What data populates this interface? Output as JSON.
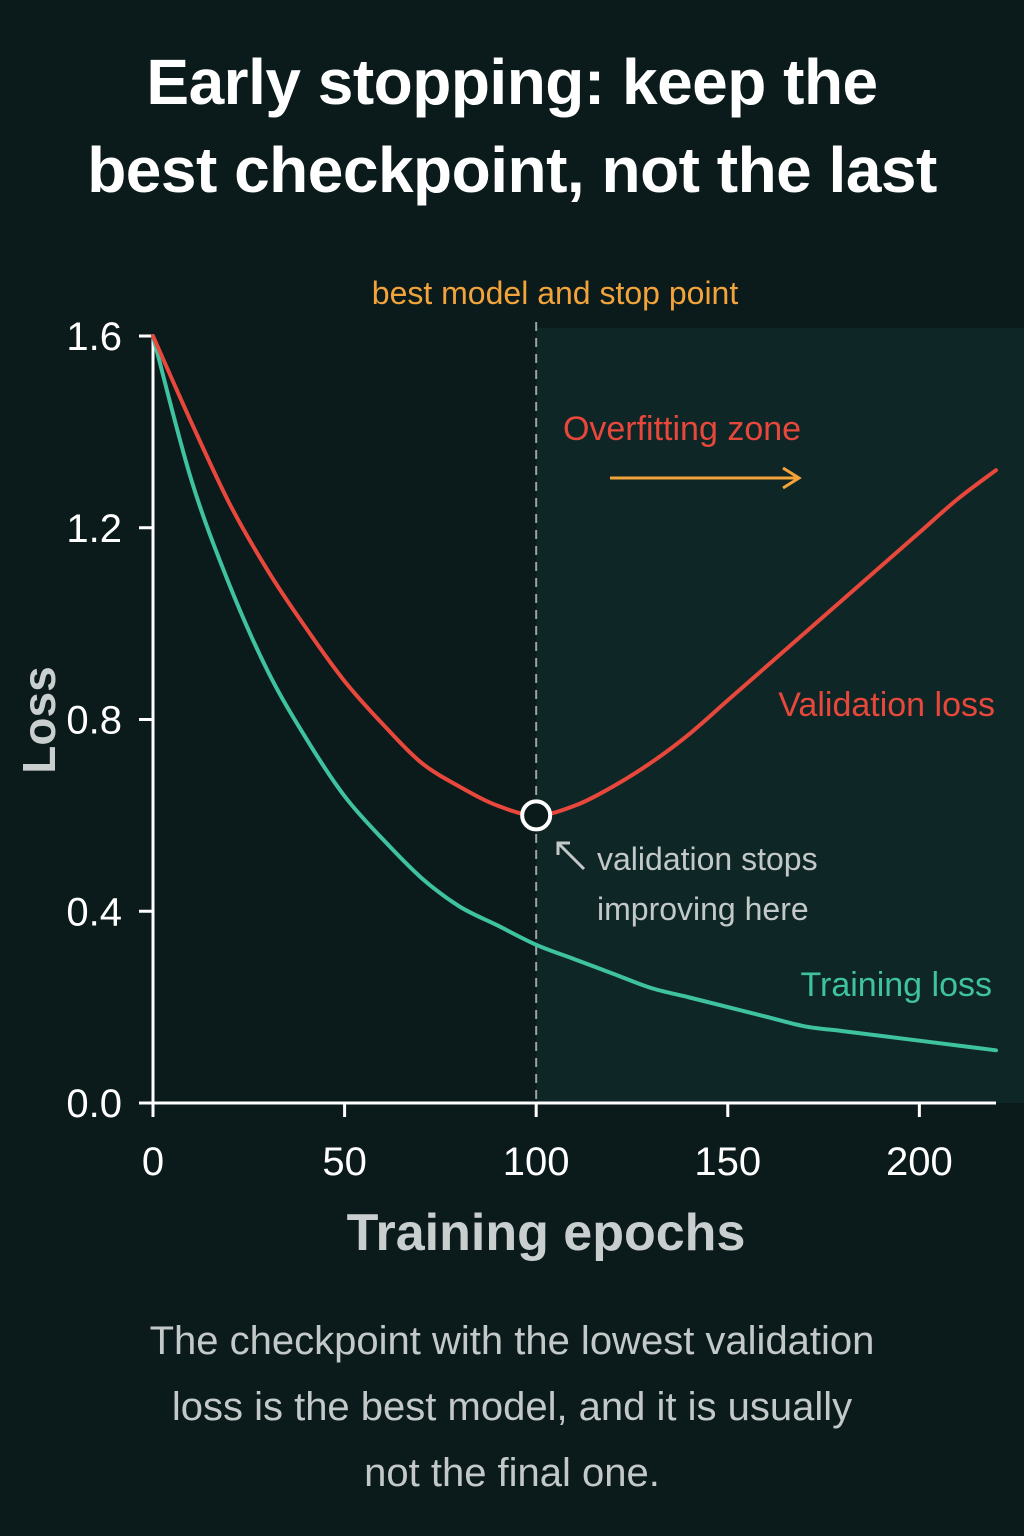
{
  "header": {
    "title_line1": "Early stopping: keep the",
    "title_line2": "best checkpoint, not the last"
  },
  "footer": {
    "caption_line1": "The checkpoint with the lowest validation",
    "caption_line2": "loss is the best model, and it is usually",
    "caption_line3": "not the final one."
  },
  "colors": {
    "background": "#0b1a1b",
    "overfit_zone": "#0f2626",
    "validation": "#e8473b",
    "training": "#3fc2a0",
    "accent": "#f2a33a",
    "axis": "#ffffff"
  },
  "chart_data": {
    "type": "line",
    "xlabel": "Training epochs",
    "ylabel": "Loss",
    "xlim": [
      0,
      220
    ],
    "ylim": [
      0,
      1.6
    ],
    "x_ticks": [
      0,
      50,
      100,
      150,
      200
    ],
    "y_ticks": [
      0.0,
      0.4,
      0.8,
      1.2,
      1.6
    ],
    "y_tick_labels": [
      "0.0",
      "0.4",
      "0.8",
      "1.2",
      "1.6"
    ],
    "grid": false,
    "series": [
      {
        "name": "Validation loss",
        "color": "#e8473b",
        "x": [
          0,
          10,
          20,
          30,
          40,
          50,
          60,
          70,
          80,
          90,
          100,
          110,
          120,
          130,
          140,
          150,
          160,
          170,
          180,
          190,
          200,
          210,
          220
        ],
        "y": [
          1.6,
          1.42,
          1.25,
          1.11,
          0.99,
          0.88,
          0.79,
          0.71,
          0.66,
          0.62,
          0.6,
          0.62,
          0.66,
          0.71,
          0.77,
          0.84,
          0.91,
          0.98,
          1.05,
          1.12,
          1.19,
          1.26,
          1.32
        ]
      },
      {
        "name": "Training loss",
        "color": "#3fc2a0",
        "x": [
          0,
          10,
          20,
          30,
          40,
          50,
          60,
          70,
          80,
          90,
          100,
          110,
          120,
          130,
          140,
          150,
          160,
          170,
          180,
          190,
          200,
          210,
          220
        ],
        "y": [
          1.6,
          1.3,
          1.08,
          0.9,
          0.76,
          0.64,
          0.55,
          0.47,
          0.41,
          0.37,
          0.33,
          0.3,
          0.27,
          0.24,
          0.22,
          0.2,
          0.18,
          0.16,
          0.15,
          0.14,
          0.13,
          0.12,
          0.11
        ]
      }
    ],
    "best_point": {
      "x": 100,
      "y": 0.6
    },
    "stop_line_x": 100,
    "annotations": {
      "stop_label": "best model and stop point",
      "overfit_label": "Overfitting zone",
      "pointer_text_line1": "validation stops",
      "pointer_text_line2": "improving here"
    }
  }
}
